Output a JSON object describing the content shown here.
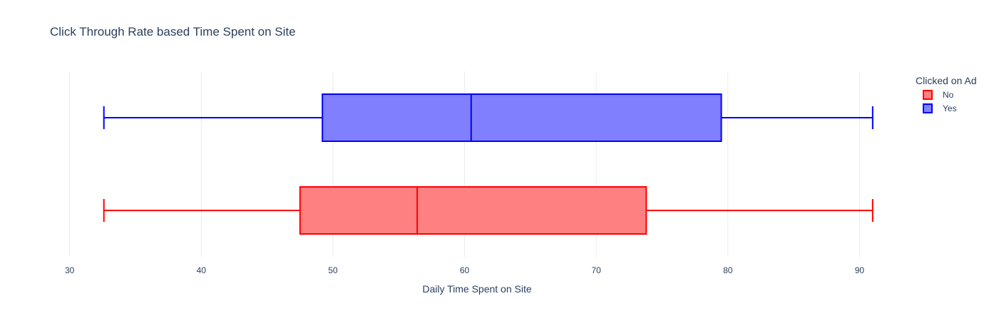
{
  "chart_data": {
    "type": "box",
    "orientation": "horizontal",
    "title": "Click Through Rate based Time Spent on Site",
    "xlabel": "Daily Time Spent on Site",
    "ylabel": "",
    "xlim": [
      28.5,
      93.5
    ],
    "xticks": [
      30,
      40,
      50,
      60,
      70,
      80,
      90
    ],
    "grid": true,
    "legend": {
      "title": "Clicked on Ad",
      "placement": "top-right"
    },
    "series": [
      {
        "name": "No",
        "color": "#ff0000",
        "fill": "#ff8080",
        "min": 32.6,
        "q1": 47.5,
        "median": 56.4,
        "q3": 73.8,
        "max": 91.0
      },
      {
        "name": "Yes",
        "color": "#0000ff",
        "fill": "#8080ff",
        "min": 32.6,
        "q1": 49.2,
        "median": 60.5,
        "q3": 79.5,
        "max": 91.0
      }
    ]
  }
}
